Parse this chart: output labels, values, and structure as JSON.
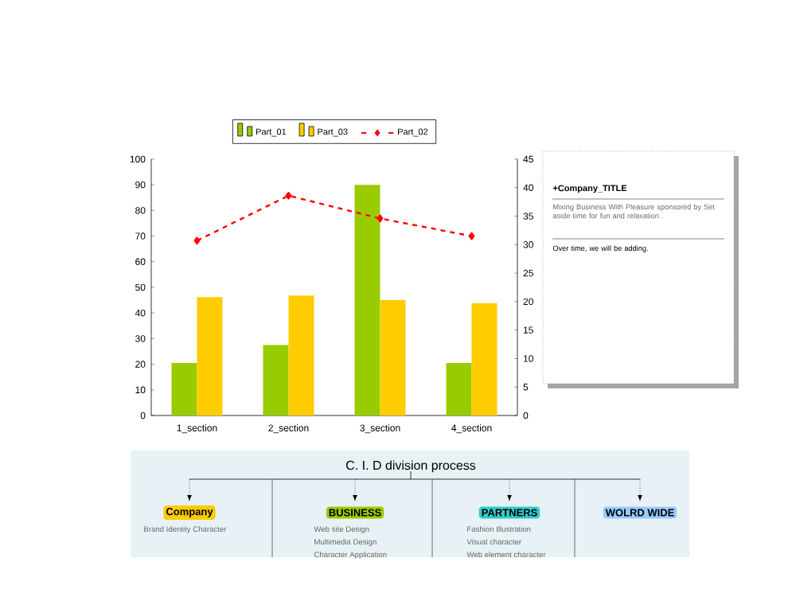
{
  "chart_data": {
    "type": "bar",
    "categories": [
      "1_section",
      "2_section",
      "3_section",
      "4_section"
    ],
    "series": [
      {
        "name": "Part_01",
        "color": "#99cc00",
        "values": [
          20.5,
          27.5,
          90,
          20.5
        ]
      },
      {
        "name": "Part_03",
        "color": "#ffcc00",
        "values": [
          46.2,
          46.8,
          45,
          43.8
        ]
      },
      {
        "name": "Part_02",
        "color": "#ff0000",
        "type": "line",
        "axis": "y2",
        "marker": "diamond",
        "line_style": "dashed",
        "values": [
          30.7,
          38.6,
          34.6,
          31.5
        ]
      }
    ],
    "ylim": [
      0,
      100
    ],
    "yticks": [
      0,
      10,
      20,
      30,
      40,
      50,
      60,
      70,
      80,
      90,
      100
    ],
    "y2lim": [
      0,
      45
    ],
    "y2ticks": [
      0,
      5,
      10,
      15,
      20,
      25,
      30,
      35,
      40,
      45
    ],
    "grid": false,
    "legend": "top",
    "annotations": [
      "+Company_TITLE",
      "Mixing Business With Pleasure sponsored by Set aside time for fun and relaxation .",
      "Over time, we will be adding.",
      "C. I. D division process",
      "Company",
      "BUSINESS",
      "PARTNERS",
      "WOLRD WIDE",
      "Brand Identity Character",
      "Web site Design",
      "Multimedia Design",
      "Character Application",
      "Fashion Illustration",
      "Visual character",
      "Web element character"
    ]
  }
}
